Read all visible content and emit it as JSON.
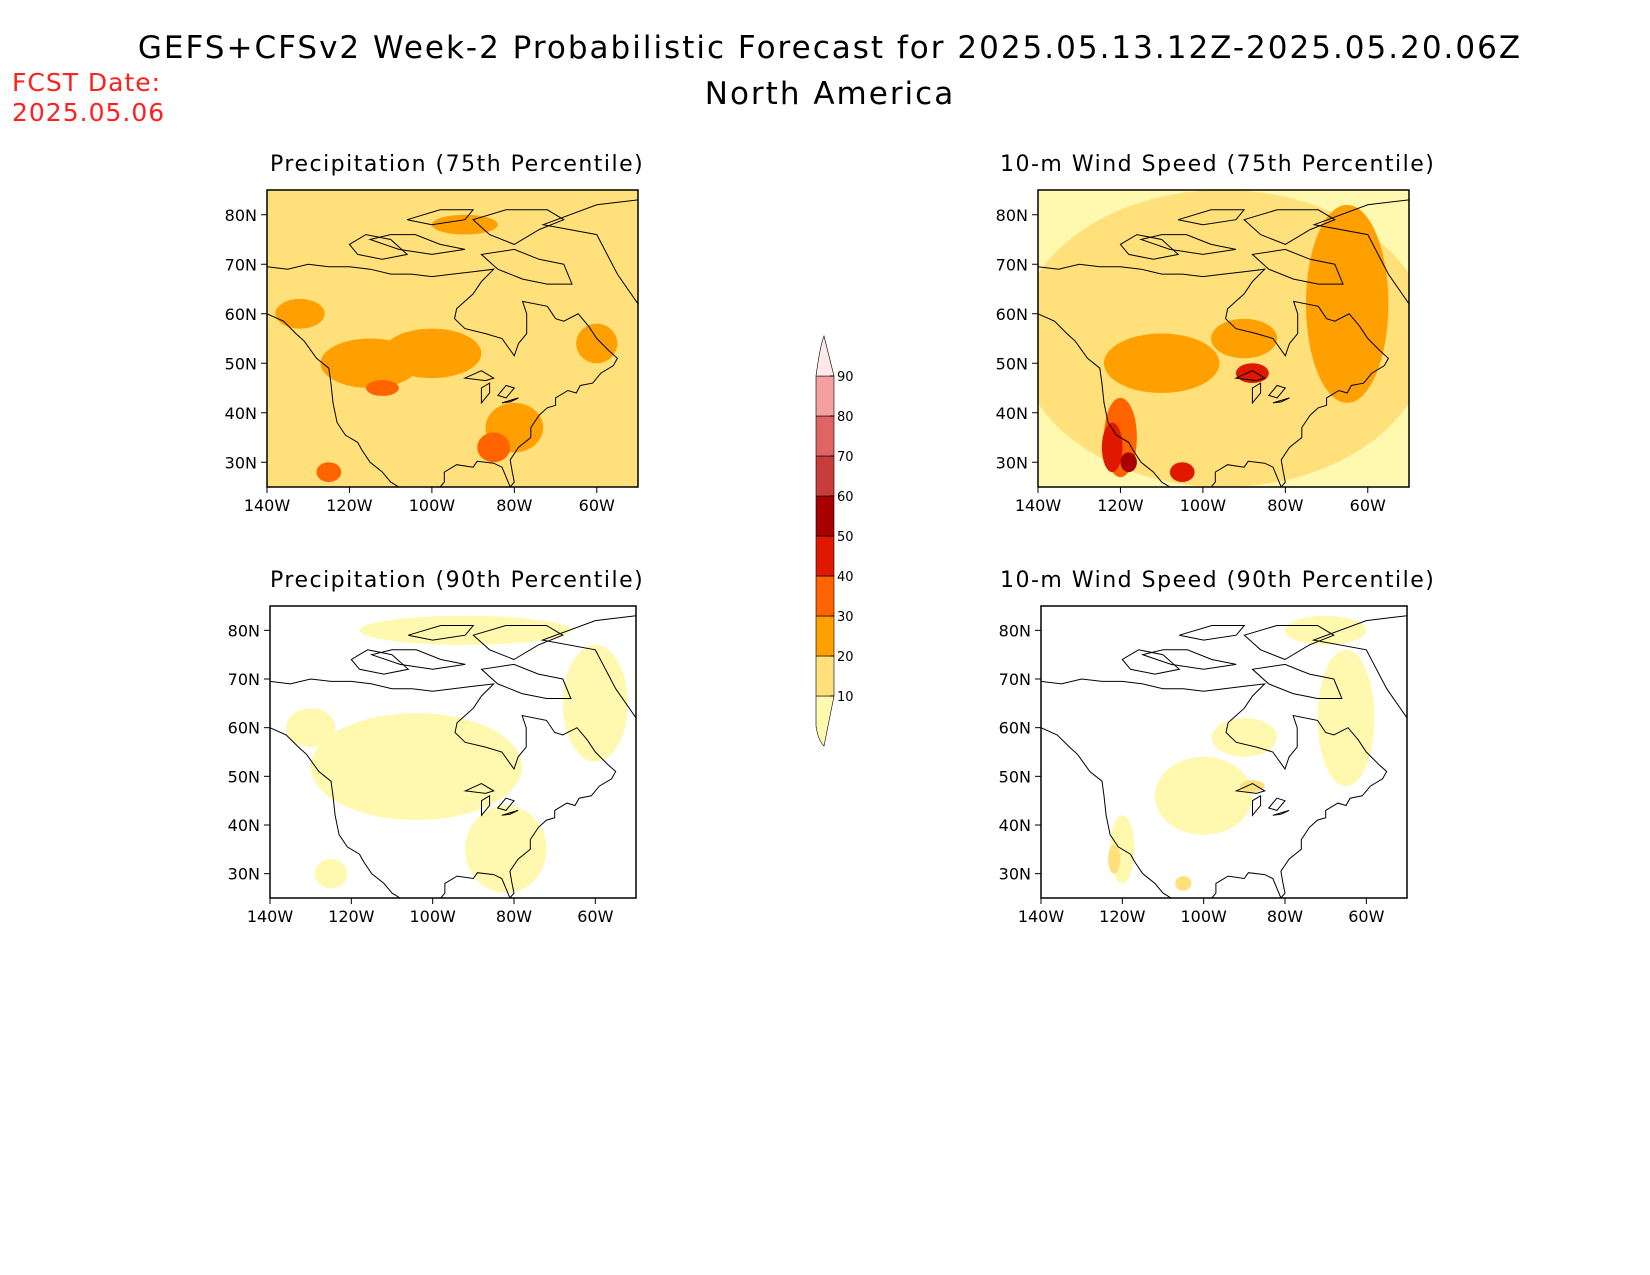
{
  "header": {
    "title": "GEFS+CFSv2 Week-2 Probabilistic Forecast for 2025.05.13.12Z-2025.05.20.06Z",
    "subtitle": "North America",
    "fcst_label": "FCST Date:",
    "fcst_date": "2025.05.06"
  },
  "panels": [
    {
      "id": "p1",
      "title": "Precipitation (75th Percentile)",
      "kind": "precip",
      "percentile": 75
    },
    {
      "id": "p2",
      "title": "10-m Wind Speed (75th Percentile)",
      "kind": "wind",
      "percentile": 75
    },
    {
      "id": "p3",
      "title": "Precipitation (90th Percentile)",
      "kind": "precip",
      "percentile": 90
    },
    {
      "id": "p4",
      "title": "10-m Wind Speed (90th Percentile)",
      "kind": "wind",
      "percentile": 90
    }
  ],
  "axes": {
    "lat_labels": [
      "30N",
      "40N",
      "50N",
      "60N",
      "70N",
      "80N"
    ],
    "lat_values": [
      30,
      40,
      50,
      60,
      70,
      80
    ],
    "lon_labels": [
      "140W",
      "120W",
      "100W",
      "80W",
      "60W"
    ],
    "lon_values": [
      -140,
      -120,
      -100,
      -80,
      -60
    ],
    "lat_range": [
      25,
      85
    ],
    "lon_range": [
      -140,
      -50
    ]
  },
  "colorbar": {
    "levels": [
      "10",
      "20",
      "30",
      "40",
      "50",
      "60",
      "70",
      "80",
      "90"
    ],
    "colors": [
      "#fff9b0",
      "#ffe07a",
      "#ffa000",
      "#ff6400",
      "#e11800",
      "#a80000",
      "#c83c3c",
      "#e06464",
      "#f5a0a0",
      "#ffe8e8"
    ]
  }
}
